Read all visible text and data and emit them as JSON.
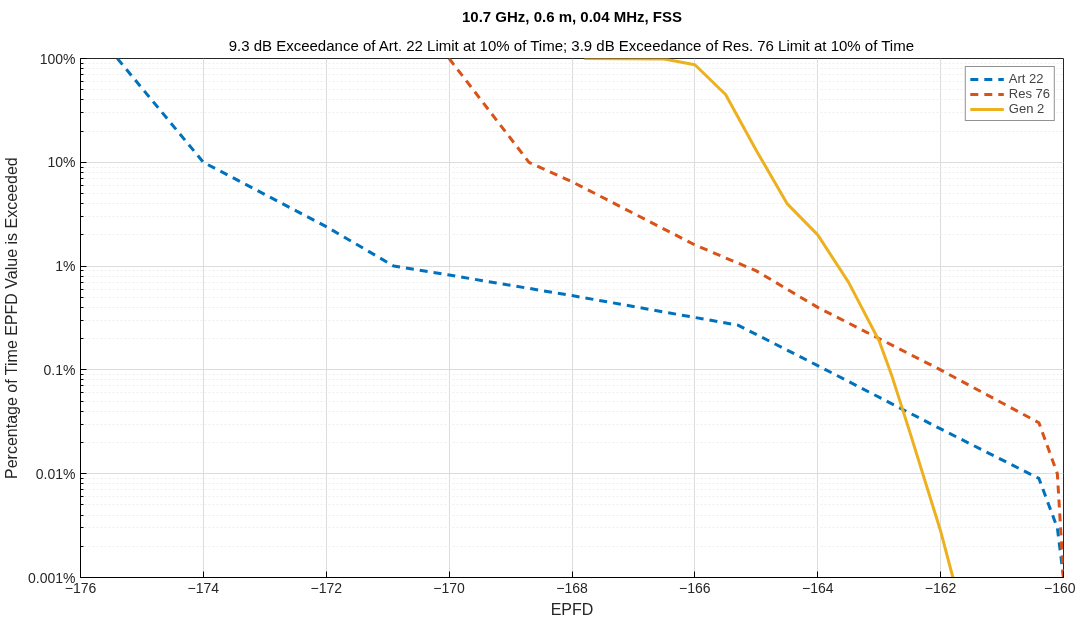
{
  "chart_data": {
    "type": "line",
    "title": "10.7 GHz, 0.6 m, 0.04 MHz, FSS",
    "subtitle": "9.3 dB Exceedance of Art. 22 Limit at 10% of Time; 3.9 dB Exceedance of Res. 76 Limit at 10% of Time",
    "xlabel": "EPFD",
    "ylabel": "Percentage of Time EPFD Value is Exceeded",
    "log": "y",
    "grid": true,
    "legend": "top right",
    "marker": "none",
    "xlim": [
      -176,
      -160
    ],
    "xticks": [
      -176,
      -174,
      -172,
      -170,
      -168,
      -166,
      -164,
      -162,
      -160
    ],
    "ylim": [
      0.001,
      100
    ],
    "yticks": [
      {
        "value": 0.001,
        "label": "0.001%"
      },
      {
        "value": 0.01,
        "label": "0.01%"
      },
      {
        "value": 0.1,
        "label": "0.1%"
      },
      {
        "value": 1,
        "label": "1%"
      },
      {
        "value": 10,
        "label": "10%"
      },
      {
        "value": 100,
        "label": "100%"
      }
    ],
    "series": [
      {
        "name": "Art 22",
        "color": "#0072bd",
        "line_style": "dashed",
        "x": [
          -175.4,
          -174,
          -172,
          -170.9,
          -170,
          -168,
          -166,
          -165.3,
          -164,
          -162,
          -160.4,
          -160.1,
          -160
        ],
        "values": [
          100,
          10,
          2.4,
          1.0,
          0.82,
          0.52,
          0.32,
          0.27,
          0.11,
          0.027,
          0.009,
          0.003,
          0.001
        ]
      },
      {
        "name": "Res 76",
        "color": "#d95319",
        "line_style": "dashed",
        "x": [
          -170,
          -168.7,
          -168,
          -166,
          -165,
          -164,
          -162,
          -160.4,
          -160.1,
          -160
        ],
        "values": [
          100,
          10,
          6.5,
          1.6,
          0.9,
          0.4,
          0.1,
          0.031,
          0.01,
          0.001
        ]
      },
      {
        "name": "Gen 2",
        "color": "#edb120",
        "line_style": "solid",
        "x": [
          -167.8,
          -166.5,
          -166,
          -165.5,
          -165,
          -164.5,
          -164,
          -163.5,
          -163,
          -162.8,
          -162.5,
          -162,
          -161.8
        ],
        "values": [
          100,
          99,
          87,
          45,
          13,
          4,
          2.0,
          0.7,
          0.19,
          0.09,
          0.025,
          0.0028,
          0.001
        ]
      }
    ]
  }
}
